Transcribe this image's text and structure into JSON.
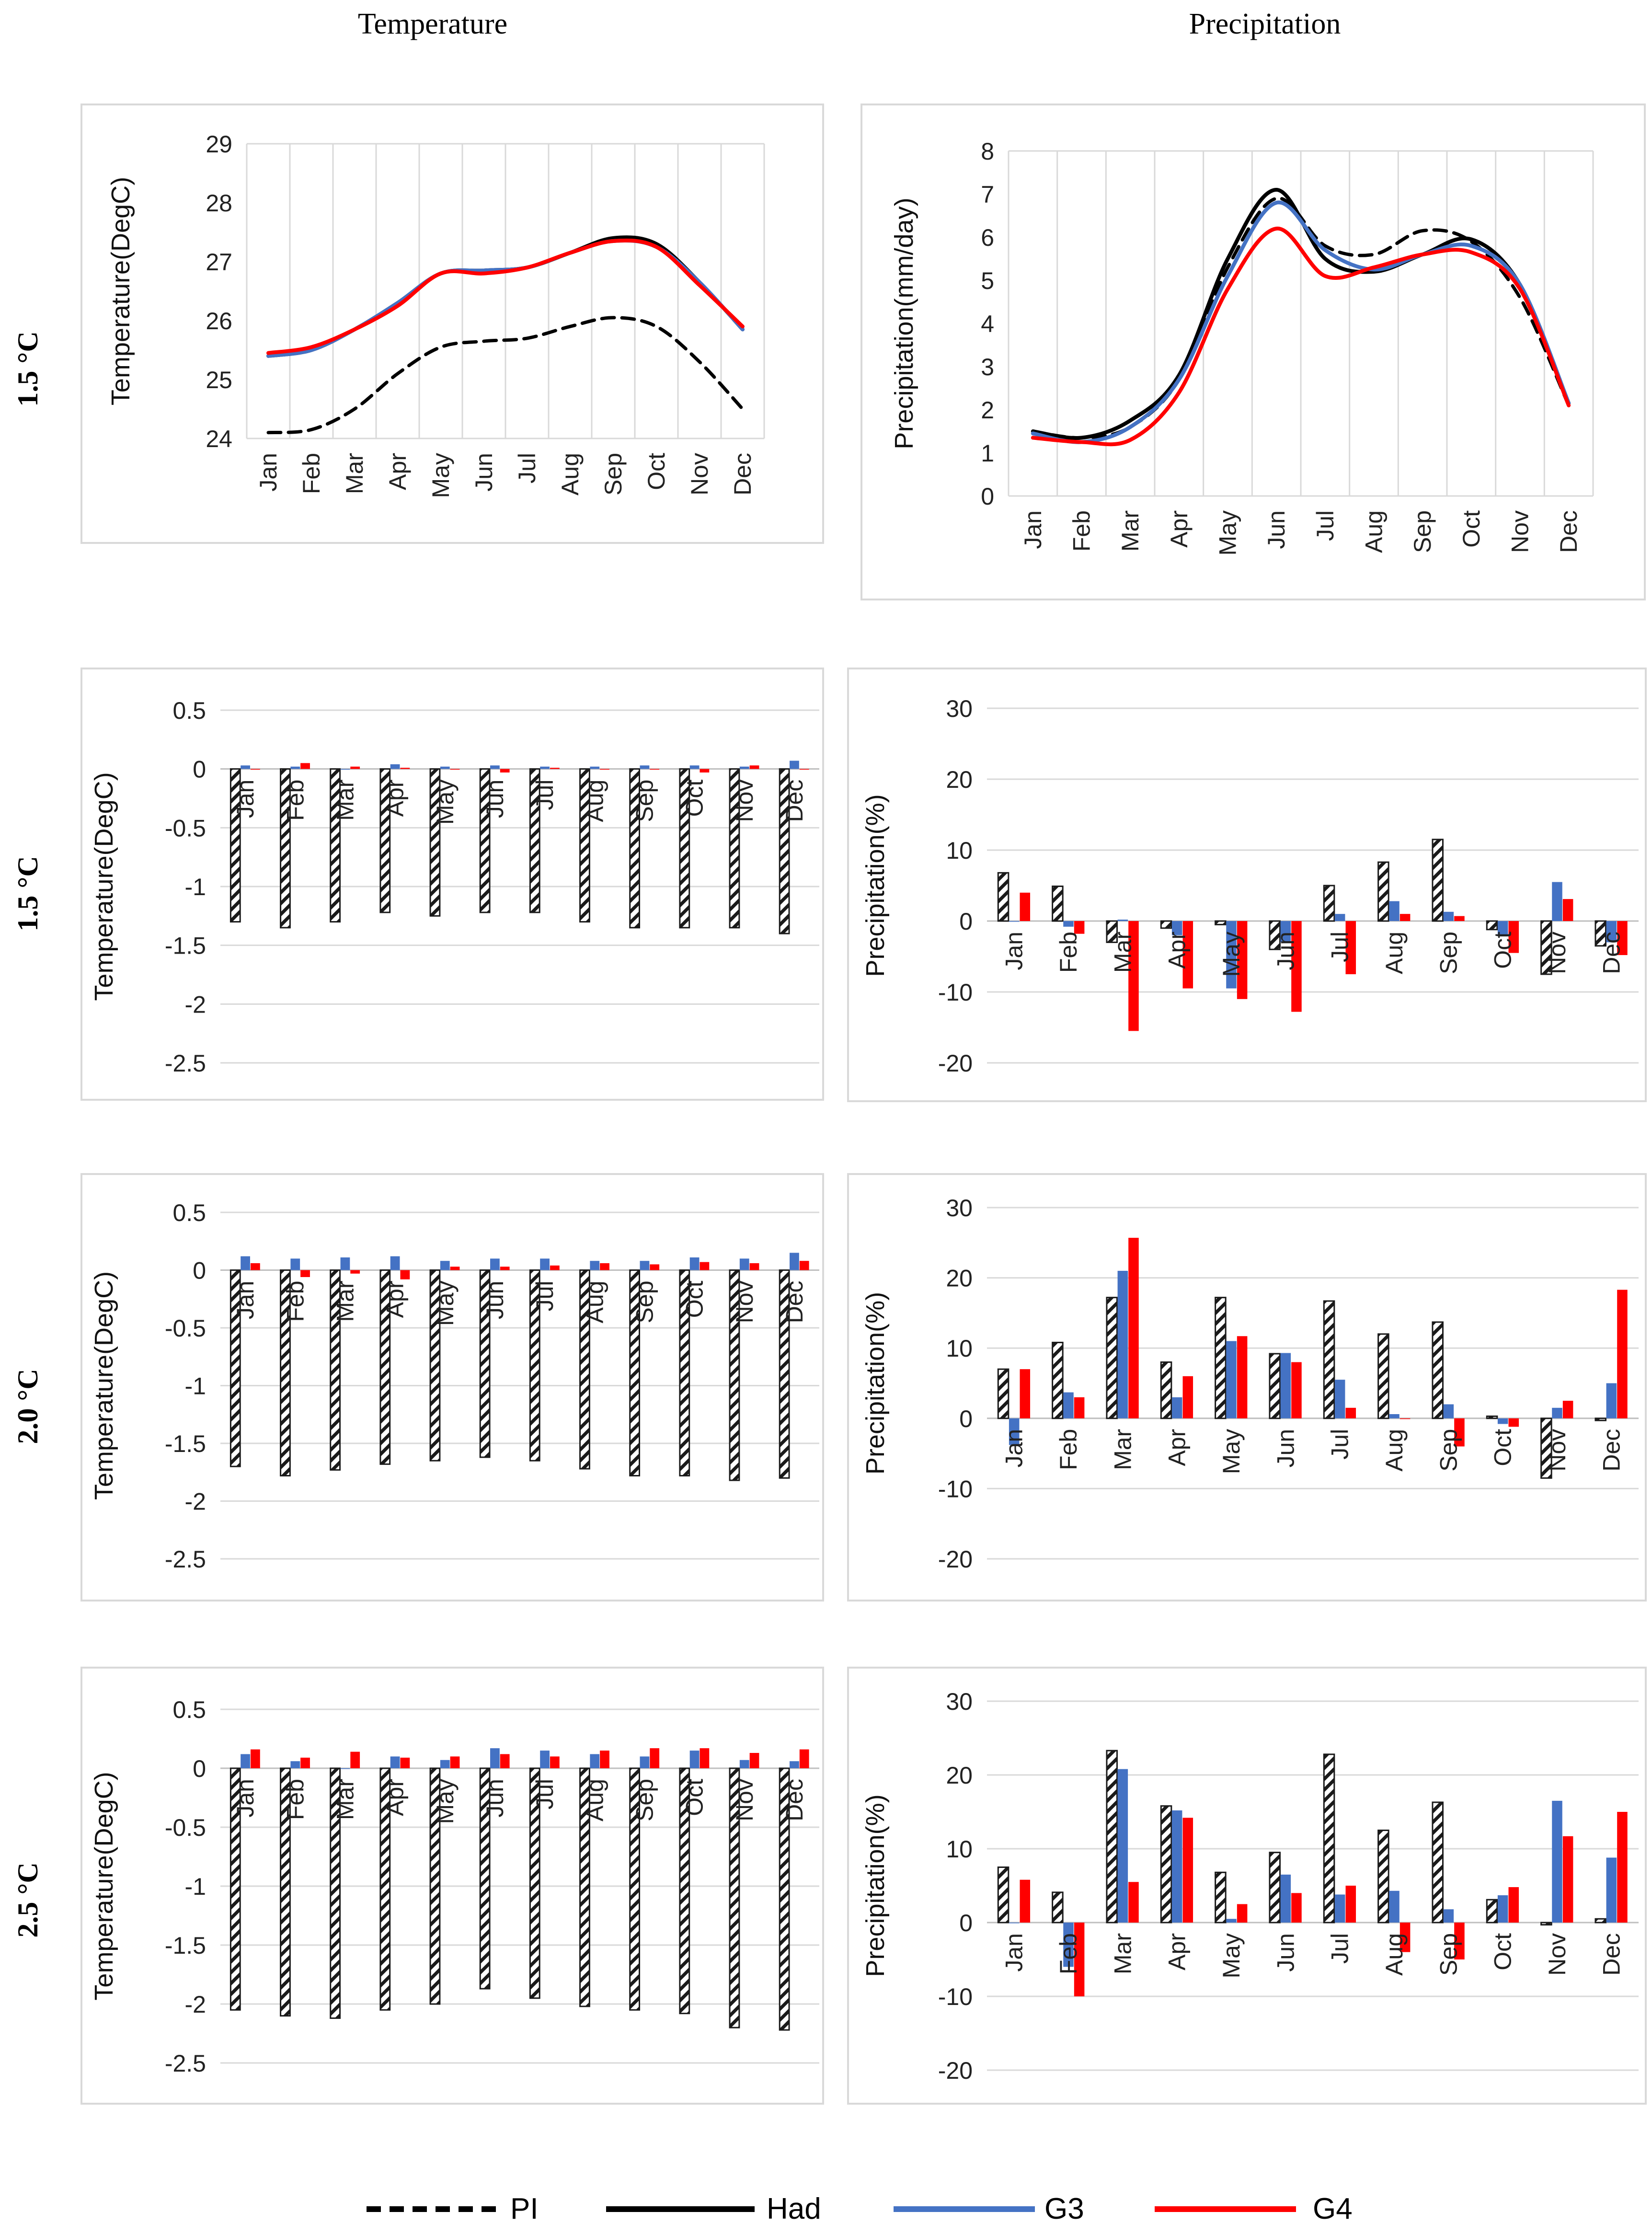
{
  "figure": {
    "column_titles": [
      "Temperature",
      "Precipitation"
    ],
    "row_labels": [
      "1.5 °C",
      "1.5 °C",
      "2.0 °C",
      "2.5 °C"
    ]
  },
  "legend": [
    {
      "name": "PI",
      "color": "#000000",
      "style": "dashed"
    },
    {
      "name": "Had",
      "color": "#000000",
      "style": "solid"
    },
    {
      "name": "G3",
      "color": "#4472C4",
      "style": "solid"
    },
    {
      "name": "G4",
      "color": "#FF0000",
      "style": "solid"
    }
  ],
  "colors": {
    "pi": "#000000",
    "had": "#000000",
    "g3": "#4472C4",
    "g4": "#FF0000",
    "grid": "#d9d9d9",
    "frame": "#d9d9d9"
  },
  "chart_data": [
    {
      "type": "line",
      "row": 0,
      "col": 0,
      "ylabel": "Temperature(DegC)",
      "categories": [
        "Jan",
        "Feb",
        "Mar",
        "Apr",
        "May",
        "Jun",
        "Jul",
        "Aug",
        "Sep",
        "Oct",
        "Nov",
        "Dec"
      ],
      "ylim": [
        24,
        29
      ],
      "yticks": [
        24,
        25,
        26,
        27,
        28,
        29
      ],
      "grid": "vertical",
      "series": [
        {
          "name": "PI",
          "values": [
            24.1,
            24.15,
            24.5,
            25.1,
            25.55,
            25.65,
            25.7,
            25.9,
            26.05,
            25.9,
            25.3,
            24.5
          ]
        },
        {
          "name": "Had",
          "values": [
            25.4,
            25.5,
            25.85,
            26.3,
            26.8,
            26.85,
            26.9,
            27.15,
            27.4,
            27.3,
            26.65,
            25.85
          ]
        },
        {
          "name": "G3",
          "values": [
            25.4,
            25.5,
            25.85,
            26.3,
            26.8,
            26.85,
            26.9,
            27.15,
            27.35,
            27.25,
            26.65,
            25.85
          ]
        },
        {
          "name": "G4",
          "values": [
            25.45,
            25.55,
            25.85,
            26.25,
            26.8,
            26.8,
            26.9,
            27.15,
            27.35,
            27.25,
            26.6,
            25.9
          ]
        }
      ]
    },
    {
      "type": "line",
      "row": 0,
      "col": 1,
      "ylabel": "Precipitation(mm/day)",
      "categories": [
        "Jan",
        "Feb",
        "Mar",
        "Apr",
        "May",
        "Jun",
        "Jul",
        "Aug",
        "Sep",
        "Oct",
        "Nov",
        "Dec"
      ],
      "ylim": [
        0,
        8
      ],
      "yticks": [
        0,
        1,
        2,
        3,
        4,
        5,
        6,
        7,
        8
      ],
      "grid": "vertical",
      "series": [
        {
          "name": "PI",
          "values": [
            1.5,
            1.35,
            1.6,
            2.7,
            5.3,
            6.9,
            5.8,
            5.6,
            6.15,
            5.9,
            4.6,
            2.1
          ]
        },
        {
          "name": "Had",
          "values": [
            1.5,
            1.35,
            1.75,
            2.8,
            5.5,
            7.1,
            5.5,
            5.2,
            5.6,
            5.95,
            4.9,
            2.15
          ]
        },
        {
          "name": "G3",
          "values": [
            1.45,
            1.25,
            1.6,
            2.7,
            5.1,
            6.8,
            5.7,
            5.25,
            5.6,
            5.8,
            4.9,
            2.15
          ]
        },
        {
          "name": "G4",
          "values": [
            1.35,
            1.25,
            1.3,
            2.4,
            4.8,
            6.2,
            5.1,
            5.3,
            5.6,
            5.65,
            4.8,
            2.1
          ]
        }
      ]
    },
    {
      "type": "bar",
      "row": 1,
      "col": 0,
      "ylabel": "Temperature(DegC)",
      "categories": [
        "Jan",
        "Feb",
        "Mar",
        "Apr",
        "May",
        "Jun",
        "Jul",
        "Aug",
        "Sep",
        "Oct",
        "Nov",
        "Dec"
      ],
      "ylim": [
        -2.5,
        0.5
      ],
      "yticks": [
        0.5,
        0,
        -0.5,
        -1,
        -1.5,
        -2,
        -2.5
      ],
      "series": [
        {
          "name": "PI",
          "values": [
            -1.3,
            -1.35,
            -1.3,
            -1.22,
            -1.25,
            -1.22,
            -1.22,
            -1.3,
            -1.35,
            -1.35,
            -1.35,
            -1.4
          ]
        },
        {
          "name": "G3",
          "values": [
            0.03,
            0.02,
            0.0,
            0.04,
            0.02,
            0.03,
            0.02,
            0.02,
            0.03,
            0.03,
            0.02,
            0.07
          ]
        },
        {
          "name": "G4",
          "values": [
            0.0,
            0.05,
            0.02,
            0.01,
            0.0,
            -0.03,
            0.01,
            0.0,
            0.0,
            -0.03,
            0.03,
            0.0
          ]
        }
      ]
    },
    {
      "type": "bar",
      "row": 1,
      "col": 1,
      "ylabel": "Precipitation(%)",
      "categories": [
        "Jan",
        "Feb",
        "Mar",
        "Apr",
        "May",
        "Jun",
        "Jul",
        "Aug",
        "Sep",
        "Oct",
        "Nov",
        "Dec"
      ],
      "ylim": [
        -20,
        30
      ],
      "yticks": [
        30,
        20,
        10,
        0,
        -10,
        -20
      ],
      "series": [
        {
          "name": "PI",
          "values": [
            6.8,
            4.9,
            -3.0,
            -1.0,
            -0.5,
            -4.0,
            5.0,
            8.3,
            11.5,
            -1.2,
            -7.5,
            -3.5
          ]
        },
        {
          "name": "G3",
          "values": [
            0.0,
            -0.8,
            0.2,
            -2.0,
            -9.5,
            -3.0,
            1.0,
            2.8,
            1.3,
            -2.0,
            5.5,
            -3.0
          ]
        },
        {
          "name": "G4",
          "values": [
            4.0,
            -1.8,
            -15.5,
            -9.5,
            -11.0,
            -12.8,
            -7.5,
            1.0,
            0.7,
            -4.5,
            3.1,
            -4.8
          ]
        }
      ]
    },
    {
      "type": "bar",
      "row": 2,
      "col": 0,
      "ylabel": "Temperature(DegC)",
      "categories": [
        "Jan",
        "Feb",
        "Mar",
        "Apr",
        "May",
        "Jun",
        "Jul",
        "Aug",
        "Sep",
        "Oct",
        "Nov",
        "Dec"
      ],
      "ylim": [
        -2.5,
        0.5
      ],
      "yticks": [
        0.5,
        0,
        -0.5,
        -1,
        -1.5,
        -2,
        -2.5
      ],
      "series": [
        {
          "name": "PI",
          "values": [
            -1.7,
            -1.78,
            -1.73,
            -1.68,
            -1.65,
            -1.62,
            -1.65,
            -1.72,
            -1.78,
            -1.78,
            -1.82,
            -1.8
          ]
        },
        {
          "name": "G3",
          "values": [
            0.12,
            0.1,
            0.11,
            0.12,
            0.08,
            0.1,
            0.1,
            0.08,
            0.08,
            0.11,
            0.1,
            0.15
          ]
        },
        {
          "name": "G4",
          "values": [
            0.06,
            -0.06,
            -0.03,
            -0.08,
            0.03,
            0.03,
            0.04,
            0.06,
            0.05,
            0.07,
            0.06,
            0.08
          ]
        }
      ]
    },
    {
      "type": "bar",
      "row": 2,
      "col": 1,
      "ylabel": "Precipitation(%)",
      "categories": [
        "Jan",
        "Feb",
        "Mar",
        "Apr",
        "May",
        "Jun",
        "Jul",
        "Aug",
        "Sep",
        "Oct",
        "Nov",
        "Dec"
      ],
      "ylim": [
        -20,
        30
      ],
      "yticks": [
        30,
        20,
        10,
        0,
        -10,
        -20
      ],
      "series": [
        {
          "name": "PI",
          "values": [
            7.0,
            10.8,
            17.2,
            8.0,
            17.2,
            9.2,
            16.7,
            12.0,
            13.7,
            0.3,
            -8.5,
            -0.3
          ]
        },
        {
          "name": "G3",
          "values": [
            -3.8,
            3.7,
            21.0,
            3.0,
            11.0,
            9.3,
            5.5,
            0.6,
            2.0,
            -0.8,
            1.5,
            5.0
          ]
        },
        {
          "name": "G4",
          "values": [
            7.0,
            3.0,
            25.7,
            6.0,
            11.7,
            8.0,
            1.5,
            0.0,
            -4.0,
            -1.2,
            2.5,
            18.3
          ]
        }
      ]
    },
    {
      "type": "bar",
      "row": 3,
      "col": 0,
      "ylabel": "Temperature(DegC)",
      "categories": [
        "Jan",
        "Feb",
        "Mar",
        "Apr",
        "May",
        "Jun",
        "Jul",
        "Aug",
        "Sep",
        "Oct",
        "Nov",
        "Dec"
      ],
      "ylim": [
        -2.5,
        0.5
      ],
      "yticks": [
        0.5,
        0,
        -0.5,
        -1,
        -1.5,
        -2,
        -2.5
      ],
      "series": [
        {
          "name": "PI",
          "values": [
            -2.05,
            -2.1,
            -2.12,
            -2.05,
            -2.0,
            -1.87,
            -1.95,
            -2.02,
            -2.05,
            -2.08,
            -2.2,
            -2.22
          ]
        },
        {
          "name": "G3",
          "values": [
            0.12,
            0.06,
            0.0,
            0.1,
            0.07,
            0.17,
            0.15,
            0.12,
            0.1,
            0.15,
            0.07,
            0.06
          ]
        },
        {
          "name": "G4",
          "values": [
            0.16,
            0.09,
            0.14,
            0.09,
            0.1,
            0.12,
            0.1,
            0.15,
            0.17,
            0.17,
            0.13,
            0.16
          ]
        }
      ]
    },
    {
      "type": "bar",
      "row": 3,
      "col": 1,
      "ylabel": "Precipitation(%)",
      "categories": [
        "Jan",
        "Feb",
        "Mar",
        "Apr",
        "May",
        "Jun",
        "Jul",
        "Aug",
        "Sep",
        "Oct",
        "Nov",
        "Dec"
      ],
      "ylim": [
        -20,
        30
      ],
      "yticks": [
        30,
        20,
        10,
        0,
        -10,
        -20
      ],
      "series": [
        {
          "name": "PI",
          "values": [
            7.5,
            4.1,
            23.3,
            15.8,
            6.8,
            9.5,
            22.8,
            12.5,
            16.3,
            3.1,
            -0.3,
            0.5
          ]
        },
        {
          "name": "G3",
          "values": [
            0.0,
            -6.0,
            20.8,
            15.2,
            0.5,
            6.5,
            3.8,
            4.3,
            1.8,
            3.7,
            16.5,
            8.8
          ]
        },
        {
          "name": "G4",
          "values": [
            5.8,
            -10.0,
            5.5,
            14.2,
            2.5,
            4.0,
            5.0,
            -4.0,
            -5.0,
            4.8,
            11.7,
            15.0
          ]
        }
      ]
    }
  ]
}
